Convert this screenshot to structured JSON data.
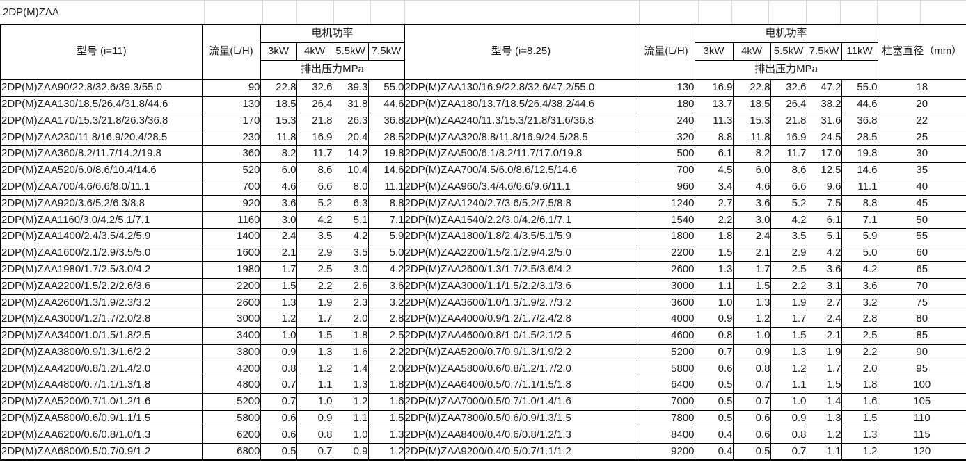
{
  "title": "2DP(M)ZAA",
  "power_header": "电机功率",
  "pressure_subheader": "排出压力MPa",
  "diameter_header": "柱塞直径（mm）",
  "tables": [
    {
      "model_header": "型号 (i=11)",
      "flow_header": "流量(L/H)",
      "power_cols": [
        "3kW",
        "4kW",
        "5.5kW",
        "7.5kW"
      ],
      "rows": [
        {
          "model": "2DP(M)ZAA90/22.8/32.6/39.3/55.0",
          "flow": "90",
          "pressures": [
            "22.8",
            "32.6",
            "39.3",
            "55.0"
          ]
        },
        {
          "model": "2DP(M)ZAA130/18.5/26.4/31.8/44.6",
          "flow": "130",
          "pressures": [
            "18.5",
            "26.4",
            "31.8",
            "44.6"
          ]
        },
        {
          "model": "2DP(M)ZAA170/15.3/21.8/26.3/36.8",
          "flow": "170",
          "pressures": [
            "15.3",
            "21.8",
            "26.3",
            "36.8"
          ]
        },
        {
          "model": "2DP(M)ZAA230/11.8/16.9/20.4/28.5",
          "flow": "230",
          "pressures": [
            "11.8",
            "16.9",
            "20.4",
            "28.5"
          ]
        },
        {
          "model": "2DP(M)ZAA360/8.2/11.7/14.2/19.8",
          "flow": "360",
          "pressures": [
            "8.2",
            "11.7",
            "14.2",
            "19.8"
          ]
        },
        {
          "model": "2DP(M)ZAA520/6.0/8.6/10.4/14.6",
          "flow": "520",
          "pressures": [
            "6.0",
            "8.6",
            "10.4",
            "14.6"
          ]
        },
        {
          "model": "2DP(M)ZAA700/4.6/6.6/8.0/11.1",
          "flow": "700",
          "pressures": [
            "4.6",
            "6.6",
            "8.0",
            "11.1"
          ]
        },
        {
          "model": "2DP(M)ZAA920/3.6/5.2/6.3/8.8",
          "flow": "920",
          "pressures": [
            "3.6",
            "5.2",
            "6.3",
            "8.8"
          ]
        },
        {
          "model": "2DP(M)ZAA1160/3.0/4.2/5.1/7.1",
          "flow": "1160",
          "pressures": [
            "3.0",
            "4.2",
            "5.1",
            "7.1"
          ]
        },
        {
          "model": "2DP(M)ZAA1400/2.4/3.5/4.2/5.9",
          "flow": "1400",
          "pressures": [
            "2.4",
            "3.5",
            "4.2",
            "5.9"
          ]
        },
        {
          "model": "2DP(M)ZAA1600/2.1/2.9/3.5/5.0",
          "flow": "1600",
          "pressures": [
            "2.1",
            "2.9",
            "3.5",
            "5.0"
          ]
        },
        {
          "model": "2DP(M)ZAA1980/1.7/2.5/3.0/4.2",
          "flow": "1980",
          "pressures": [
            "1.7",
            "2.5",
            "3.0",
            "4.2"
          ]
        },
        {
          "model": "2DP(M)ZAA2200/1.5/2.2/2.6/3.6",
          "flow": "2200",
          "pressures": [
            "1.5",
            "2.2",
            "2.6",
            "3.6"
          ]
        },
        {
          "model": "2DP(M)ZAA2600/1.3/1.9/2.3/3.2",
          "flow": "2600",
          "pressures": [
            "1.3",
            "1.9",
            "2.3",
            "3.2"
          ]
        },
        {
          "model": "2DP(M)ZAA3000/1.2/1.7/2.0/2.8",
          "flow": "3000",
          "pressures": [
            "1.2",
            "1.7",
            "2.0",
            "2.8"
          ]
        },
        {
          "model": "2DP(M)ZAA3400/1.0/1.5/1.8/2.5",
          "flow": "3400",
          "pressures": [
            "1.0",
            "1.5",
            "1.8",
            "2.5"
          ]
        },
        {
          "model": "2DP(M)ZAA3800/0.9/1.3/1.6/2.2",
          "flow": "3800",
          "pressures": [
            "0.9",
            "1.3",
            "1.6",
            "2.2"
          ]
        },
        {
          "model": "2DP(M)ZAA4200/0.8/1.2/1.4/2.0",
          "flow": "4200",
          "pressures": [
            "0.8",
            "1.2",
            "1.4",
            "2.0"
          ]
        },
        {
          "model": "2DP(M)ZAA4800/0.7/1.1/1.3/1.8",
          "flow": "4800",
          "pressures": [
            "0.7",
            "1.1",
            "1.3",
            "1.8"
          ]
        },
        {
          "model": "2DP(M)ZAA5200/0.7/1.0/1.2/1.6",
          "flow": "5200",
          "pressures": [
            "0.7",
            "1.0",
            "1.2",
            "1.6"
          ]
        },
        {
          "model": "2DP(M)ZAA5800/0.6/0.9/1.1/1.5",
          "flow": "5800",
          "pressures": [
            "0.6",
            "0.9",
            "1.1",
            "1.5"
          ]
        },
        {
          "model": "2DP(M)ZAA6200/0.6/0.8/1.0/1.3",
          "flow": "6200",
          "pressures": [
            "0.6",
            "0.8",
            "1.0",
            "1.3"
          ]
        },
        {
          "model": "2DP(M)ZAA6800/0.5/0.7/0.9/1.2",
          "flow": "6800",
          "pressures": [
            "0.5",
            "0.7",
            "0.9",
            "1.2"
          ]
        }
      ]
    },
    {
      "model_header": "型号 (i=8.25)",
      "flow_header": "流量(L/H)",
      "power_cols": [
        "3kW",
        "4kW",
        "5.5kW",
        "7.5kW",
        "11kW"
      ],
      "rows": [
        {
          "model": "2DP(M)ZAA130/16.9/22.8/32.6/47.2/55.0",
          "flow": "130",
          "pressures": [
            "16.9",
            "22.8",
            "32.6",
            "47.2",
            "55.0"
          ]
        },
        {
          "model": "2DP(M)ZAA180/13.7/18.5/26.4/38.2/44.6",
          "flow": "180",
          "pressures": [
            "13.7",
            "18.5",
            "26.4",
            "38.2",
            "44.6"
          ]
        },
        {
          "model": "2DP(M)ZAA240/11.3/15.3/21.8/31.6/36.8",
          "flow": "240",
          "pressures": [
            "11.3",
            "15.3",
            "21.8",
            "31.6",
            "36.8"
          ]
        },
        {
          "model": "2DP(M)ZAA320/8.8/11.8/16.9/24.5/28.5",
          "flow": "320",
          "pressures": [
            "8.8",
            "11.8",
            "16.9",
            "24.5",
            "28.5"
          ]
        },
        {
          "model": "2DP(M)ZAA500/6.1/8.2/11.7/17.0/19.8",
          "flow": "500",
          "pressures": [
            "6.1",
            "8.2",
            "11.7",
            "17.0",
            "19.8"
          ]
        },
        {
          "model": "2DP(M)ZAA700/4.5/6.0/8.6/12.5/14.6",
          "flow": "700",
          "pressures": [
            "4.5",
            "6.0",
            "8.6",
            "12.5",
            "14.6"
          ]
        },
        {
          "model": "2DP(M)ZAA960/3.4/4.6/6.6/9.6/11.1",
          "flow": "960",
          "pressures": [
            "3.4",
            "4.6",
            "6.6",
            "9.6",
            "11.1"
          ]
        },
        {
          "model": "2DP(M)ZAA1240/2.7/3.6/5.2/7.5/8.8",
          "flow": "1240",
          "pressures": [
            "2.7",
            "3.6",
            "5.2",
            "7.5",
            "8.8"
          ]
        },
        {
          "model": "2DP(M)ZAA1540/2.2/3.0/4.2/6.1/7.1",
          "flow": "1540",
          "pressures": [
            "2.2",
            "3.0",
            "4.2",
            "6.1",
            "7.1"
          ]
        },
        {
          "model": "2DP(M)ZAA1800/1.8/2.4/3.5/5.1/5.9",
          "flow": "1800",
          "pressures": [
            "1.8",
            "2.4",
            "3.5",
            "5.1",
            "5.9"
          ]
        },
        {
          "model": "2DP(M)ZAA2200/1.5/2.1/2.9/4.2/5.0",
          "flow": "2200",
          "pressures": [
            "1.5",
            "2.1",
            "2.9",
            "4.2",
            "5.0"
          ]
        },
        {
          "model": "2DP(M)ZAA2600/1.3/1.7/2.5/3.6/4.2",
          "flow": "2600",
          "pressures": [
            "1.3",
            "1.7",
            "2.5",
            "3.6",
            "4.2"
          ]
        },
        {
          "model": "2DP(M)ZAA3000/1.1/1.5/2.2/3.1/3.6",
          "flow": "3000",
          "pressures": [
            "1.1",
            "1.5",
            "2.2",
            "3.1",
            "3.6"
          ]
        },
        {
          "model": "2DP(M)ZAA3600/1.0/1.3/1.9/2.7/3.2",
          "flow": "3600",
          "pressures": [
            "1.0",
            "1.3",
            "1.9",
            "2.7",
            "3.2"
          ]
        },
        {
          "model": "2DP(M)ZAA4000/0.9/1.2/1.7/2.4/2.8",
          "flow": "4000",
          "pressures": [
            "0.9",
            "1.2",
            "1.7",
            "2.4",
            "2.8"
          ]
        },
        {
          "model": "2DP(M)ZAA4600/0.8/1.0/1.5/2.1/2.5",
          "flow": "4600",
          "pressures": [
            "0.8",
            "1.0",
            "1.5",
            "2.1",
            "2.5"
          ]
        },
        {
          "model": "2DP(M)ZAA5200/0.7/0.9/1.3/1.9/2.2",
          "flow": "5200",
          "pressures": [
            "0.7",
            "0.9",
            "1.3",
            "1.9",
            "2.2"
          ]
        },
        {
          "model": "2DP(M)ZAA5800/0.6/0.8/1.2/1.7/2.0",
          "flow": "5800",
          "pressures": [
            "0.6",
            "0.8",
            "1.2",
            "1.7",
            "2.0"
          ]
        },
        {
          "model": "2DP(M)ZAA6400/0.5/0.7/1.1/1.5/1.8",
          "flow": "6400",
          "pressures": [
            "0.5",
            "0.7",
            "1.1",
            "1.5",
            "1.8"
          ]
        },
        {
          "model": "2DP(M)ZAA7000/0.5/0.7/1.0/1.4/1.6",
          "flow": "7000",
          "pressures": [
            "0.5",
            "0.7",
            "1.0",
            "1.4",
            "1.6"
          ]
        },
        {
          "model": "2DP(M)ZAA7800/0.5/0.6/0.9/1.3/1.5",
          "flow": "7800",
          "pressures": [
            "0.5",
            "0.6",
            "0.9",
            "1.3",
            "1.5"
          ]
        },
        {
          "model": "2DP(M)ZAA8400/0.4/0.6/0.8/1.2/1.3",
          "flow": "8400",
          "pressures": [
            "0.4",
            "0.6",
            "0.8",
            "1.2",
            "1.3"
          ]
        },
        {
          "model": "2DP(M)ZAA9200/0.4/0.5/0.7/1.1/1.2",
          "flow": "9200",
          "pressures": [
            "0.4",
            "0.5",
            "0.7",
            "1.1",
            "1.2"
          ]
        }
      ]
    }
  ],
  "diameters": [
    "18",
    "20",
    "22",
    "25",
    "30",
    "35",
    "40",
    "45",
    "50",
    "55",
    "60",
    "65",
    "70",
    "75",
    "80",
    "85",
    "90",
    "95",
    "100",
    "105",
    "110",
    "115",
    "120"
  ]
}
